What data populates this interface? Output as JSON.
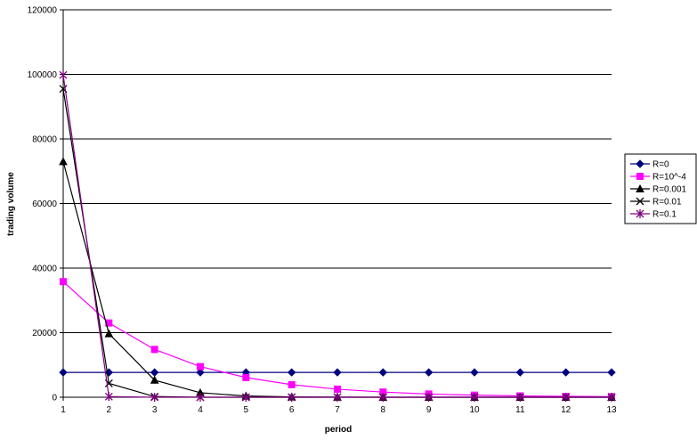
{
  "chart_data": {
    "type": "line",
    "xlabel": "period",
    "ylabel": "trading volume",
    "xlim": [
      1,
      13
    ],
    "ylim": [
      0,
      120000
    ],
    "x": [
      1,
      2,
      3,
      4,
      5,
      6,
      7,
      8,
      9,
      10,
      11,
      12,
      13
    ],
    "yticks": [
      "0",
      "20000",
      "40000",
      "60000",
      "80000",
      "100000",
      "120000"
    ],
    "xticks": [
      "1",
      "2",
      "3",
      "4",
      "5",
      "6",
      "7",
      "8",
      "9",
      "10",
      "11",
      "12",
      "13"
    ],
    "grid": "horizontal",
    "legend_position": "right",
    "series": [
      {
        "name": "R=0",
        "color": "#000080",
        "marker": "diamond",
        "values": [
          7700,
          7700,
          7700,
          7700,
          7700,
          7700,
          7700,
          7700,
          7700,
          7700,
          7700,
          7700,
          7700
        ]
      },
      {
        "name": "R=10^-4",
        "color": "#ff00ff",
        "marker": "square",
        "values": [
          35800,
          23000,
          14800,
          9500,
          6100,
          3900,
          2500,
          1600,
          1000,
          650,
          420,
          270,
          180
        ]
      },
      {
        "name": "R=0.001",
        "color": "#000000",
        "marker": "triangle",
        "values": [
          73000,
          19700,
          5300,
          1400,
          380,
          100,
          30,
          10,
          5,
          2,
          1,
          0,
          0
        ]
      },
      {
        "name": "R=0.01",
        "color": "#000000",
        "marker": "x",
        "values": [
          95500,
          4300,
          200,
          10,
          0,
          0,
          0,
          0,
          0,
          0,
          0,
          0,
          0
        ]
      },
      {
        "name": "R=0.1",
        "color": "#800080",
        "marker": "star",
        "values": [
          99800,
          200,
          0,
          0,
          0,
          0,
          0,
          0,
          0,
          0,
          0,
          0,
          0
        ]
      }
    ]
  }
}
